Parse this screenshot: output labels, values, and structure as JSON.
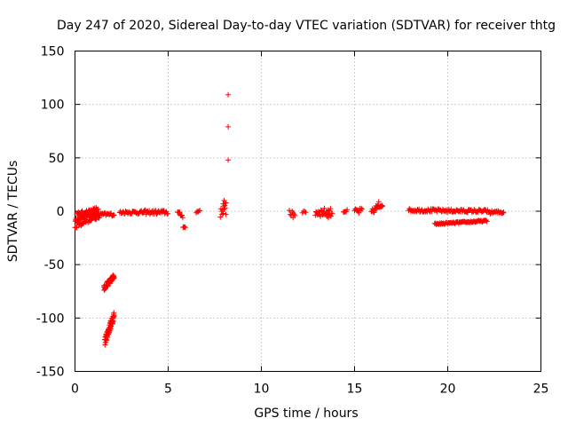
{
  "chart_data": {
    "type": "scatter",
    "title": "Day 247 of 2020, Sidereal Day-to-day VTEC variation (SDTVAR) for receiver thtg",
    "xlabel": "GPS time / hours",
    "ylabel": "SDTVAR / TECUs",
    "xlim": [
      0,
      25
    ],
    "ylim": [
      -150,
      150
    ],
    "x_ticks": [
      0,
      5,
      10,
      15,
      20,
      25
    ],
    "y_ticks": [
      -150,
      -100,
      -50,
      0,
      50,
      100,
      150
    ],
    "grid": true,
    "marker": "+",
    "marker_color": "#ff0000",
    "series": [
      {
        "segments": [
          {
            "x0": 0.0,
            "x1": 1.3,
            "y0": -12,
            "y1": -3,
            "step": 0.02,
            "amp": 4
          },
          {
            "x0": 0.05,
            "x1": 1.3,
            "y0": -7,
            "y1": 1,
            "step": 0.03,
            "amp": 3
          },
          {
            "x0": 0.1,
            "x1": 1.2,
            "y0": -3,
            "y1": 2,
            "step": 0.04,
            "amp": 2
          },
          {
            "x0": 1.3,
            "x1": 2.1,
            "y0": -3,
            "y1": -3,
            "step": 0.04,
            "amp": 1.5
          },
          {
            "x0": 1.55,
            "x1": 2.1,
            "y0": -72,
            "y1": -61,
            "step": 0.01,
            "amp": 2.5
          },
          {
            "x0": 1.6,
            "x1": 2.1,
            "y0": -122,
            "y1": -97,
            "step": 0.008,
            "amp": 4
          },
          {
            "x0": 2.4,
            "x1": 3.7,
            "y0": -1,
            "y1": -1,
            "step": 0.04,
            "amp": 1.5
          },
          {
            "x0": 3.7,
            "x1": 5.0,
            "y0": -1,
            "y1": -1,
            "step": 0.04,
            "amp": 2
          },
          {
            "x0": 5.5,
            "x1": 5.8,
            "y0": -1,
            "y1": -5,
            "step": 0.04,
            "amp": 1.5
          },
          {
            "x0": 5.8,
            "x1": 5.95,
            "y0": -14,
            "y1": -16,
            "step": 0.04,
            "amp": 1.5
          },
          {
            "x0": 6.5,
            "x1": 6.7,
            "y0": -1,
            "y1": 1,
            "step": 0.05,
            "amp": 2
          },
          {
            "x0": 7.8,
            "x1": 8.1,
            "y0": -2,
            "y1": 5,
            "step": 0.03,
            "amp": 4
          },
          {
            "x0": 11.5,
            "x1": 11.8,
            "y0": -1,
            "y1": -1,
            "step": 0.05,
            "amp": 4
          },
          {
            "x0": 12.2,
            "x1": 12.4,
            "y0": -1,
            "y1": -1,
            "step": 0.06,
            "amp": 1
          },
          {
            "x0": 12.9,
            "x1": 13.8,
            "y0": -1,
            "y1": -1,
            "step": 0.03,
            "amp": 4
          },
          {
            "x0": 14.4,
            "x1": 14.6,
            "y0": 0,
            "y1": 0,
            "step": 0.05,
            "amp": 1.5
          },
          {
            "x0": 15.0,
            "x1": 15.4,
            "y0": 0,
            "y1": 0,
            "step": 0.04,
            "amp": 3
          },
          {
            "x0": 15.9,
            "x1": 16.5,
            "y0": -1,
            "y1": 7,
            "step": 0.03,
            "amp": 2.5
          },
          {
            "x0": 17.9,
            "x1": 22.2,
            "y0": 1,
            "y1": 0,
            "step": 0.04,
            "amp": 1.5
          },
          {
            "x0": 19.3,
            "x1": 22.1,
            "y0": -12,
            "y1": -9,
            "step": 0.04,
            "amp": 0.8
          },
          {
            "x0": 22.2,
            "x1": 23.0,
            "y0": -1,
            "y1": -1,
            "step": 0.04,
            "amp": 1.5
          }
        ],
        "points": [
          [
            8.22,
            109
          ],
          [
            8.22,
            79
          ],
          [
            8.22,
            48
          ],
          [
            8.0,
            10
          ],
          [
            7.95,
            7
          ],
          [
            8.05,
            3
          ],
          [
            8.1,
            -3
          ],
          [
            11.7,
            -6
          ],
          [
            13.6,
            -6
          ],
          [
            16.3,
            9
          ],
          [
            16.15,
            5
          ]
        ]
      }
    ]
  }
}
